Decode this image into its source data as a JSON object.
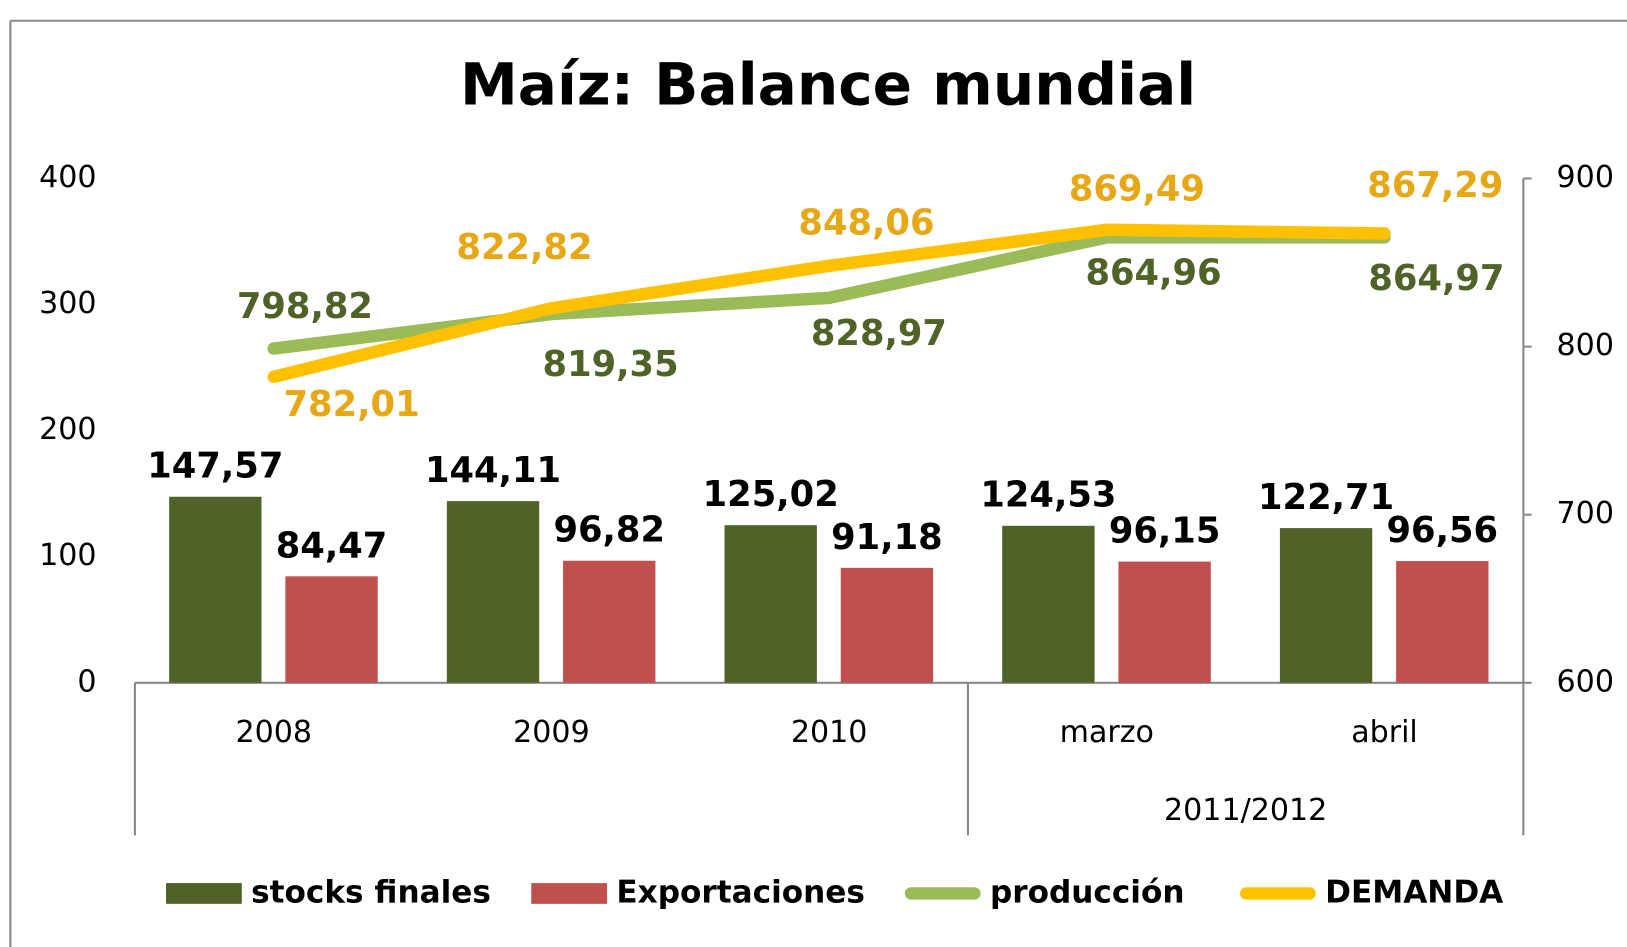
{
  "chart_data": {
    "type": "bar-line",
    "title": "Maíz:  Balance mundial",
    "categories": [
      "2008",
      "2009",
      "2010",
      "marzo",
      "abril"
    ],
    "categories_outer": [
      null,
      null,
      null,
      "2011/2012",
      "2011/2012"
    ],
    "ylim": [
      0,
      400
    ],
    "yticks": [
      0,
      100,
      200,
      300,
      400
    ],
    "y2lim": [
      600,
      900
    ],
    "y2ticks": [
      600,
      700,
      800,
      900
    ],
    "series": [
      {
        "name": "stocks finales",
        "type": "bar",
        "color": "#4f6228",
        "values": [
          147.57,
          144.11,
          125.02,
          124.53,
          122.71
        ],
        "value_labels": [
          "147,57",
          "144,11",
          "125,02",
          "124,53",
          "122,71"
        ],
        "label_color": "#000000"
      },
      {
        "name": "Exportaciones",
        "type": "bar",
        "color": "#c0504d",
        "values": [
          84.47,
          96.82,
          91.18,
          96.15,
          96.56
        ],
        "value_labels": [
          "84,47",
          "96,82",
          "91,18",
          "96,15",
          "96,56"
        ],
        "label_color": "#000000"
      },
      {
        "name": "producción",
        "type": "line",
        "axis": "y2",
        "color": "#9bbb59",
        "values": [
          798.82,
          819.35,
          828.97,
          864.96,
          864.97
        ],
        "value_labels": [
          "798,82",
          "819,35",
          "828,97",
          "864,96",
          "864,97"
        ],
        "label_color": "#4f6228"
      },
      {
        "name": "DEMANDA",
        "type": "line",
        "axis": "y2",
        "color": "#ffc000",
        "values": [
          782.01,
          822.82,
          848.06,
          869.49,
          867.29
        ],
        "value_labels": [
          "782,01",
          "822,82",
          "848,06",
          "869,49",
          "867,29"
        ],
        "label_color": "#e6a817"
      }
    ]
  }
}
